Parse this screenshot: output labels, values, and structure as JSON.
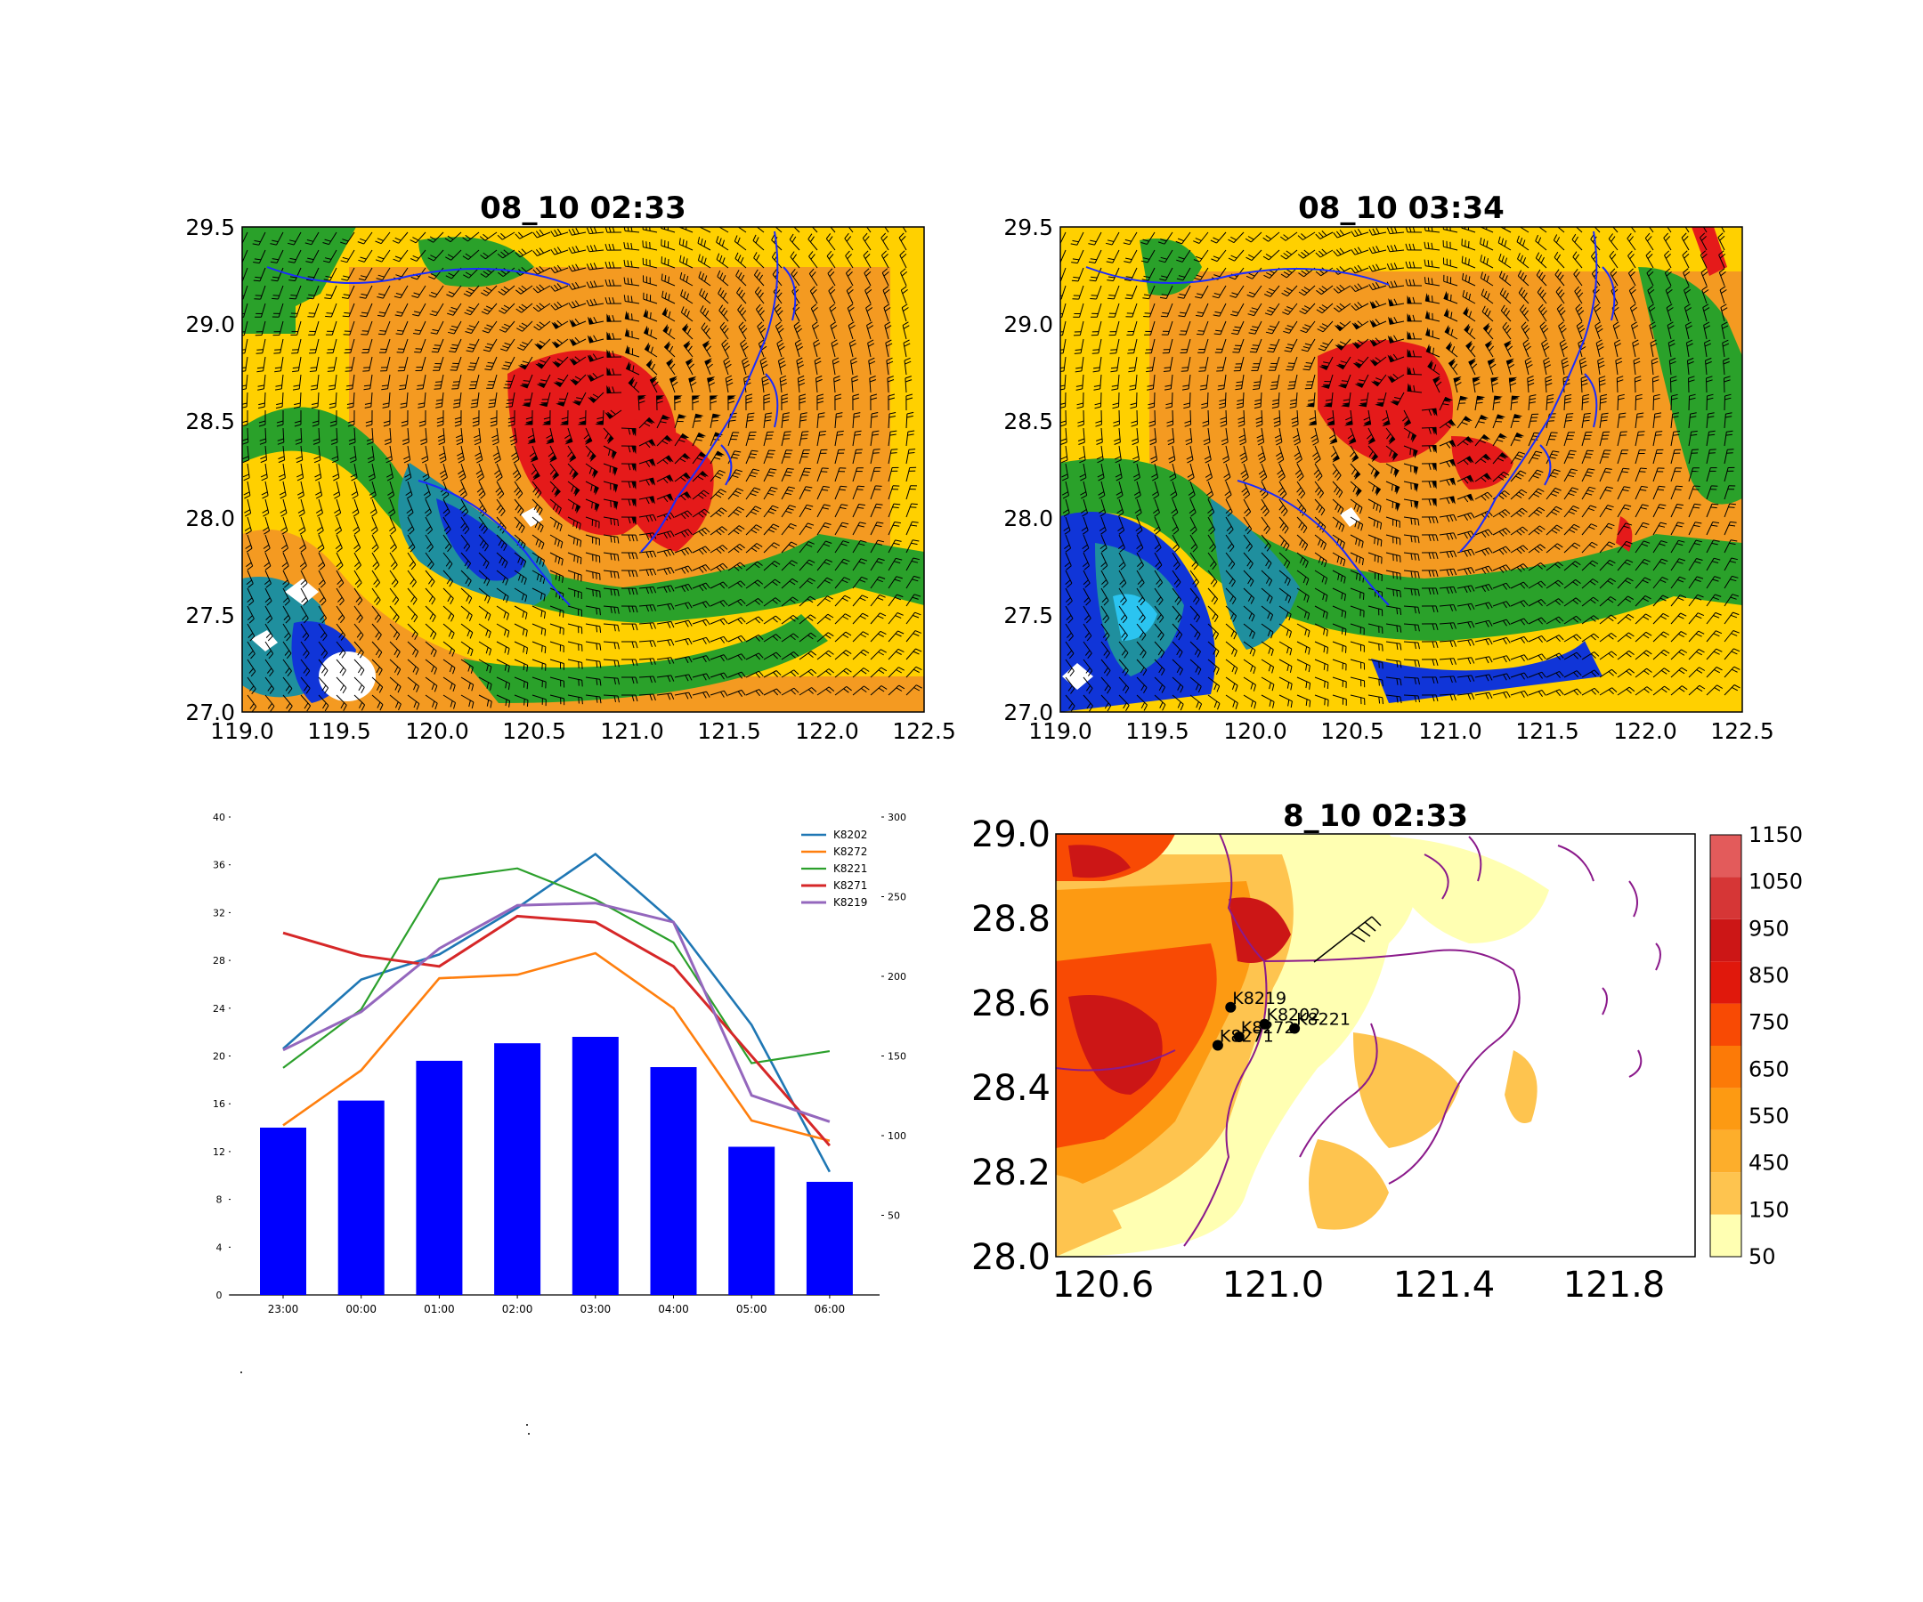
{
  "colors": {
    "map_red": "#e51a1a",
    "map_orange": "#f49a21",
    "map_yellow": "#ffd000",
    "map_green": "#2aa12a",
    "map_teal": "#1f8f9e",
    "map_blue": "#1035d8",
    "coast_blue": "#1a2bff",
    "bar_blue": "#0000ff",
    "terrain_border": "#8b1a8b"
  },
  "chart_data": [
    {
      "type": "heatmap",
      "title": "08_10 02:33",
      "xticks": [
        "119.0",
        "119.5",
        "120.0",
        "120.5",
        "121.0",
        "121.5",
        "122.0",
        "122.5"
      ],
      "yticks": [
        "27.0",
        "27.5",
        "28.0",
        "28.5",
        "29.0",
        "29.5"
      ],
      "xlim": [
        119.0,
        122.5
      ],
      "ylim": [
        27.0,
        29.5
      ],
      "overlay": "wind barbs",
      "vortex_center": [
        120.95,
        28.55
      ]
    },
    {
      "type": "heatmap",
      "title": "08_10 03:34",
      "xticks": [
        "119.0",
        "119.5",
        "120.0",
        "120.5",
        "121.0",
        "121.5",
        "122.0",
        "122.5"
      ],
      "yticks": [
        "27.0",
        "27.5",
        "28.0",
        "28.5",
        "29.0",
        "29.5"
      ],
      "xlim": [
        119.0,
        122.5
      ],
      "ylim": [
        27.0,
        29.5
      ],
      "overlay": "wind barbs",
      "vortex_center": [
        120.85,
        28.6
      ]
    },
    {
      "type": "bar",
      "categories": [
        "23:00",
        "00:00",
        "01:00",
        "02:00",
        "03:00",
        "04:00",
        "05:00",
        "06:00"
      ],
      "bars": [
        105,
        122,
        147,
        158,
        162,
        143,
        93,
        71
      ],
      "bar_axis": "right",
      "ylim_left": [
        0,
        40
      ],
      "yticks_left": [
        "0",
        "4",
        "8",
        "12",
        "16",
        "20",
        "24",
        "28",
        "32",
        "36",
        "40"
      ],
      "ylim_right": [
        0,
        300
      ],
      "yticks_right": [
        "50",
        "100",
        "150",
        "200",
        "250",
        "300"
      ],
      "series": [
        {
          "name": "K8202",
          "color": "#1f77b4",
          "width": 2,
          "values": [
            20.6,
            26.4,
            28.5,
            32.4,
            36.9,
            31.2,
            22.6,
            10.3
          ]
        },
        {
          "name": "K8272",
          "color": "#ff7f0e",
          "width": 2,
          "values": [
            14.2,
            18.8,
            26.5,
            26.8,
            28.6,
            24.0,
            14.6,
            12.9
          ]
        },
        {
          "name": "K8221",
          "color": "#2ca02c",
          "width": 1.6,
          "values": [
            19.0,
            23.9,
            34.8,
            35.7,
            33.1,
            29.5,
            19.4,
            20.4
          ]
        },
        {
          "name": "K8271",
          "color": "#d62728",
          "width": 2.4,
          "values": [
            30.3,
            28.4,
            27.5,
            31.7,
            31.2,
            27.5,
            20.0,
            12.5
          ]
        },
        {
          "name": "K8219",
          "color": "#9467bd",
          "width": 2.4,
          "values": [
            20.5,
            23.7,
            29.0,
            32.6,
            32.8,
            31.2,
            16.7,
            14.5
          ]
        }
      ]
    },
    {
      "type": "heatmap",
      "title": "8_10 02:33",
      "xticks": [
        "120.6",
        "121.0",
        "121.4",
        "121.8"
      ],
      "yticks": [
        "28.0",
        "28.2",
        "28.4",
        "28.6",
        "28.8",
        "29.0"
      ],
      "xlim": [
        120.55,
        122.05
      ],
      "ylim": [
        28.0,
        29.0
      ],
      "colorbar": {
        "levels": [
          "50",
          "150",
          "450",
          "550",
          "650",
          "750",
          "850",
          "950",
          "1050",
          "1150"
        ],
        "colors": [
          "#ffffb2",
          "#fec44f",
          "#fdae2b",
          "#fd9a12",
          "#fc7a07",
          "#f84a04",
          "#e0180c",
          "#cc1616",
          "#d63636",
          "#e35b5b"
        ]
      },
      "stations": [
        {
          "name": "K8219",
          "lon": 120.96,
          "lat": 28.59
        },
        {
          "name": "K8202",
          "lon": 121.04,
          "lat": 28.55
        },
        {
          "name": "K8221",
          "lon": 121.11,
          "lat": 28.54
        },
        {
          "name": "K8272",
          "lon": 120.98,
          "lat": 28.52
        },
        {
          "name": "K8271",
          "lon": 120.93,
          "lat": 28.5
        }
      ]
    }
  ]
}
